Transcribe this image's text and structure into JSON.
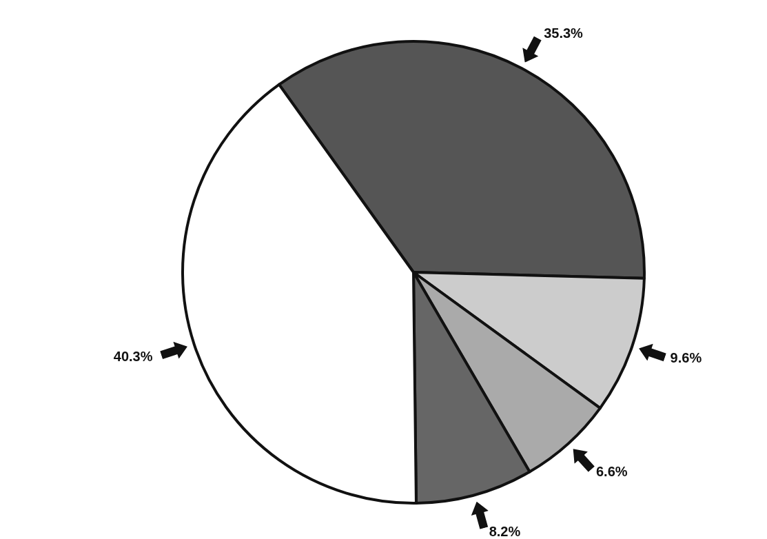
{
  "chart_data": {
    "type": "pie",
    "categories": [
      null,
      null,
      null,
      null,
      null
    ],
    "values": [
      35.3,
      9.6,
      6.6,
      8.2,
      40.3
    ],
    "colors": [
      "#555555",
      "#cccccc",
      "#aaaaaa",
      "#666666",
      "#ffffff"
    ],
    "value_labels": [
      "35.3%",
      "9.6%",
      "6.6%",
      "8.2%",
      "40.3%"
    ]
  }
}
